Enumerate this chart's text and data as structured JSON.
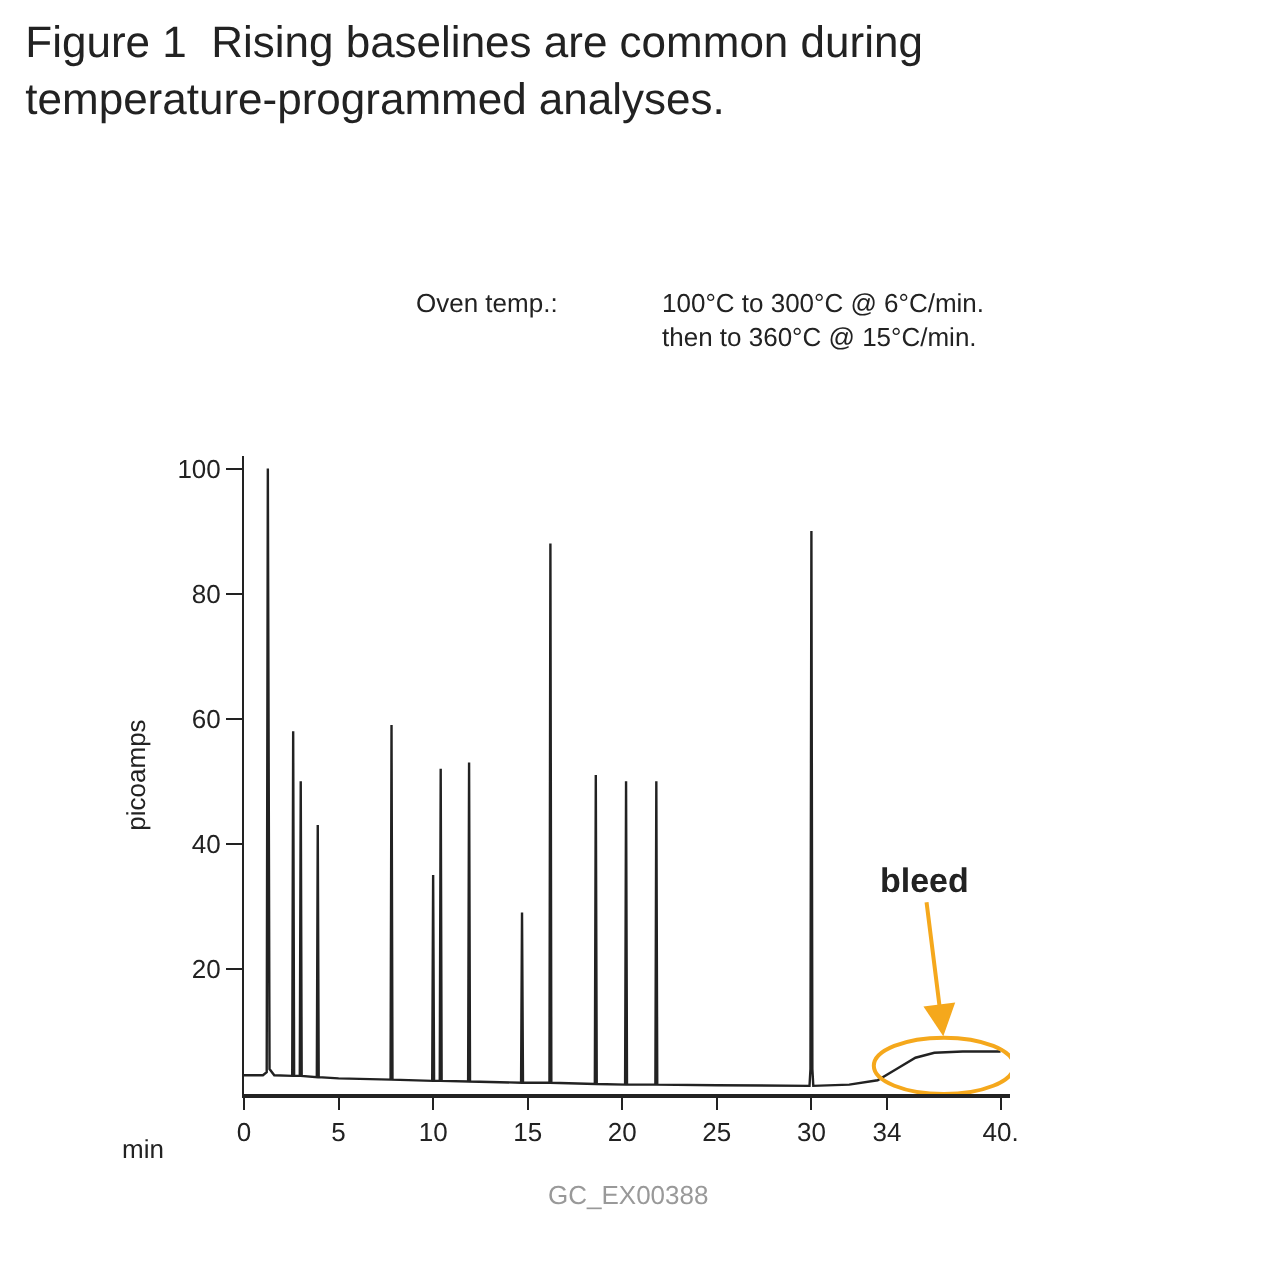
{
  "chart_data": {
    "type": "line",
    "title": "Figure 1  Rising baselines are common during temperature-programmed analyses.",
    "xlabel": "min",
    "ylabel": "picoamps",
    "x": [
      0,
      1.0,
      1.2,
      1.26,
      1.35,
      1.6,
      2.55,
      2.6,
      2.65,
      2.95,
      3.0,
      3.05,
      3.85,
      3.9,
      3.95,
      5,
      7.75,
      7.8,
      7.85,
      9.95,
      10.0,
      10.05,
      10.35,
      10.4,
      10.45,
      11.85,
      11.9,
      11.95,
      14.65,
      14.7,
      14.75,
      16.15,
      16.2,
      16.25,
      18.55,
      18.6,
      18.65,
      20.15,
      20.2,
      20.25,
      21.75,
      21.8,
      21.85,
      25,
      29.9,
      29.95,
      30.0,
      30.05,
      30.1,
      32,
      33.5,
      34.5,
      35.5,
      36.5,
      38,
      40
    ],
    "series": [
      {
        "color": "#222222",
        "values": [
          3,
          3,
          3.5,
          100,
          4,
          3,
          2.9,
          58,
          2.9,
          2.9,
          50,
          2.9,
          2.7,
          43,
          2.7,
          2.5,
          2.3,
          59,
          2.3,
          2.1,
          35,
          2.1,
          2.1,
          52,
          2.1,
          2,
          53,
          2,
          1.8,
          29,
          1.8,
          1.8,
          88,
          1.8,
          1.6,
          51,
          1.6,
          1.5,
          50,
          1.5,
          1.5,
          50,
          1.5,
          1.4,
          1.3,
          4,
          90,
          4,
          1.3,
          1.5,
          2.2,
          4,
          5.8,
          6.6,
          6.8,
          6.8
        ]
      }
    ],
    "xlim": [
      0,
      40.5
    ],
    "ylim": [
      0,
      102
    ],
    "xticks": [
      0,
      5,
      10,
      15,
      20,
      25,
      30,
      34,
      {
        "value": 40,
        "label": "40."
      }
    ],
    "yticks": [
      20,
      40,
      60,
      80,
      100
    ],
    "annotations": [
      "Oven temp.:",
      "100°C to 300°C @ 6°C/min.\nthen to 360°C @ 15°C/min.",
      {
        "text": "bleed",
        "x": 37,
        "y": 7
      },
      "GC_EX00388"
    ],
    "marker": "none",
    "line_style": "solid"
  }
}
